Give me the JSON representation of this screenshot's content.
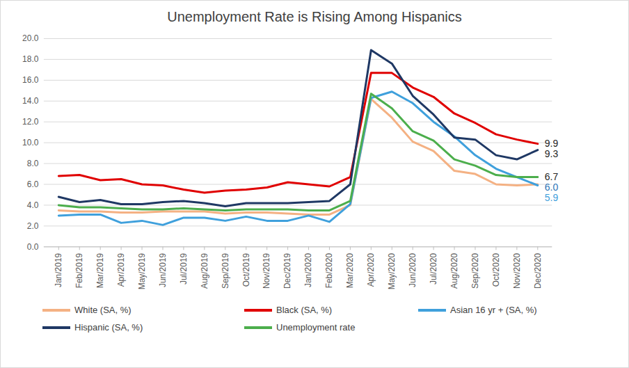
{
  "chart_data": {
    "type": "line",
    "title": "Unemployment Rate is Rising Among Hispanics",
    "categories": [
      "Jan/2019",
      "Feb/2019",
      "Mar/2019",
      "Apr/2019",
      "May/2019",
      "Jun/2019",
      "Jul/2019",
      "Aug/2019",
      "Sep/2019",
      "Oct/2019",
      "Nov/2019",
      "Dec/2019",
      "Jan/2020",
      "Feb/2020",
      "Mar/2020",
      "Apr/2020",
      "May/2020",
      "Jun/2020",
      "Jul/2020",
      "Aug/2020",
      "Sep/2020",
      "Oct/2020",
      "Nov/2020",
      "Dec/2020"
    ],
    "series": [
      {
        "name": "White (SA, %)",
        "color": "#f4b183",
        "values": [
          3.5,
          3.4,
          3.4,
          3.3,
          3.3,
          3.4,
          3.4,
          3.4,
          3.2,
          3.3,
          3.3,
          3.2,
          3.1,
          3.1,
          4.0,
          14.2,
          12.4,
          10.1,
          9.2,
          7.3,
          7.0,
          6.0,
          5.9,
          6.0
        ]
      },
      {
        "name": "Black (SA, %)",
        "color": "#e00000",
        "values": [
          6.8,
          6.9,
          6.4,
          6.5,
          6.0,
          5.9,
          5.5,
          5.2,
          5.4,
          5.5,
          5.7,
          6.2,
          6.0,
          5.8,
          6.7,
          16.7,
          16.7,
          15.3,
          14.4,
          12.8,
          11.9,
          10.8,
          10.3,
          9.9
        ]
      },
      {
        "name": "Asian 16 yr + (SA, %)",
        "color": "#3fa0dc",
        "values": [
          3.0,
          3.1,
          3.1,
          2.3,
          2.5,
          2.1,
          2.8,
          2.8,
          2.5,
          2.9,
          2.5,
          2.5,
          3.0,
          2.4,
          4.1,
          14.3,
          14.9,
          13.8,
          12.0,
          10.6,
          8.8,
          7.5,
          6.7,
          5.9
        ]
      },
      {
        "name": "Hispanic (SA, %)",
        "color": "#1f3864",
        "values": [
          4.8,
          4.3,
          4.5,
          4.1,
          4.1,
          4.3,
          4.4,
          4.2,
          3.9,
          4.2,
          4.2,
          4.2,
          4.3,
          4.4,
          6.0,
          18.9,
          17.6,
          14.5,
          12.7,
          10.5,
          10.3,
          8.8,
          8.4,
          9.3
        ]
      },
      {
        "name": "Unemployment rate",
        "color": "#4cae4c",
        "values": [
          4.0,
          3.8,
          3.8,
          3.7,
          3.6,
          3.6,
          3.7,
          3.6,
          3.5,
          3.6,
          3.6,
          3.6,
          3.5,
          3.5,
          4.4,
          14.7,
          13.3,
          11.1,
          10.2,
          8.4,
          7.8,
          6.9,
          6.7,
          6.7
        ]
      }
    ],
    "ylim": [
      0,
      20
    ],
    "yticks": [
      {
        "value": 0,
        "label": "0.0"
      },
      {
        "value": 2,
        "label": "2.0"
      },
      {
        "value": 4,
        "label": "4.0"
      },
      {
        "value": 6,
        "label": "6.0"
      },
      {
        "value": 8,
        "label": "8.0"
      },
      {
        "value": 10,
        "label": "10.0"
      },
      {
        "value": 12,
        "label": "12.0"
      },
      {
        "value": 14,
        "label": "14.0"
      },
      {
        "value": 16,
        "label": "16.0"
      },
      {
        "value": 18,
        "label": "18.0"
      },
      {
        "value": 20,
        "label": "20.0"
      }
    ],
    "grid": true,
    "legend": "bottom",
    "annotations": [
      {
        "text": "9.9",
        "x": "Dec/2020",
        "y": 9.9,
        "color": "#262626"
      },
      {
        "text": "9.3",
        "x": "Dec/2020",
        "y": 9.3,
        "color": "#262626"
      },
      {
        "text": "6.7",
        "x": "Dec/2020",
        "y": 6.7,
        "color": "#262626"
      },
      {
        "text": "6.0",
        "x": "Dec/2020",
        "y": 6.0,
        "color": "#2e75b6"
      },
      {
        "text": "5.9",
        "x": "Dec/2020",
        "y": 5.9,
        "color": "#3fa0dc"
      }
    ]
  }
}
